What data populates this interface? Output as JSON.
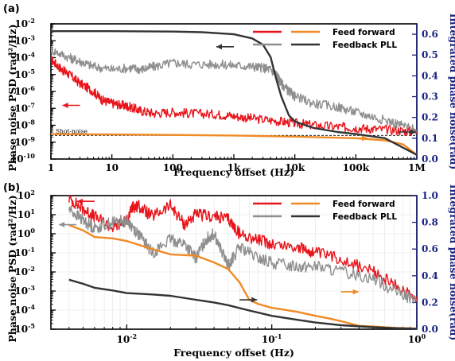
{
  "panels": [
    {
      "label": "(a)"
    },
    {
      "label": "(b)"
    }
  ],
  "chart_data": [
    {
      "type": "line",
      "panel": "(a)",
      "xlabel": "Frequency offset (Hz)",
      "ylabel": "Phase noise PSD (rad²/Hz)",
      "y2label": "Integrated phase noise(rad)",
      "xscale": "log",
      "yscale": "log",
      "y2scale": "linear",
      "xlim": [
        1,
        1000000
      ],
      "ylim": [
        1e-10,
        0.01
      ],
      "y2lim": [
        0,
        0.65
      ],
      "x_ticks": [
        {
          "v": 1,
          "label": "1"
        },
        {
          "v": 10,
          "label": "10"
        },
        {
          "v": 100,
          "label": "100"
        },
        {
          "v": 1000,
          "label": "1k"
        },
        {
          "v": 10000,
          "label": "10k"
        },
        {
          "v": 100000,
          "label": "100k"
        },
        {
          "v": 1000000,
          "label": "1M"
        }
      ],
      "y_ticks": [
        {
          "v": 1e-10,
          "base": "10",
          "exp": "-10"
        },
        {
          "v": 1e-09,
          "base": "10",
          "exp": "-9"
        },
        {
          "v": 1e-08,
          "base": "10",
          "exp": "-8"
        },
        {
          "v": 1e-07,
          "base": "10",
          "exp": "-7"
        },
        {
          "v": 1e-06,
          "base": "10",
          "exp": "-6"
        },
        {
          "v": 1e-05,
          "base": "10",
          "exp": "-5"
        },
        {
          "v": 0.0001,
          "base": "10",
          "exp": "-4"
        },
        {
          "v": 0.001,
          "base": "10",
          "exp": "-3"
        },
        {
          "v": 0.01,
          "base": "10",
          "exp": "-2"
        }
      ],
      "y2_ticks": [
        {
          "v": 0.0,
          "label": "0.0"
        },
        {
          "v": 0.1,
          "label": "0.1"
        },
        {
          "v": 0.2,
          "label": "0.2"
        },
        {
          "v": 0.3,
          "label": "0.3"
        },
        {
          "v": 0.4,
          "label": "0.4"
        },
        {
          "v": 0.5,
          "label": "0.5"
        },
        {
          "v": 0.6,
          "label": "0.6"
        }
      ],
      "grid": false,
      "legend": {
        "placement": "top-right"
      },
      "shot_noise": {
        "label": "Shot-noise",
        "y": 2.5e-09
      },
      "series": [
        {
          "name": "Feed forward",
          "kind": "psd",
          "color": "#e8141b",
          "axis": "left",
          "x": [
            1,
            1.5,
            2,
            3,
            5,
            7,
            10,
            15,
            20,
            30,
            50,
            100,
            200,
            500,
            1000,
            2000,
            5000,
            10000,
            20000,
            50000,
            100000,
            200000,
            500000,
            1000000
          ],
          "y": [
            8e-05,
            2e-05,
            1e-05,
            3e-06,
            1e-06,
            3e-07,
            2e-07,
            1.5e-07,
            1.2e-07,
            7e-08,
            5e-08,
            6e-08,
            5e-08,
            4.5e-08,
            3.5e-08,
            2.5e-08,
            1.8e-08,
            1.3e-08,
            1e-08,
            8e-09,
            7e-09,
            6e-09,
            5e-09,
            4e-09
          ]
        },
        {
          "name": "Feedback PLL",
          "kind": "psd",
          "color": "#8f8f8f",
          "axis": "left",
          "x": [
            1,
            2,
            3,
            5,
            10,
            20,
            30,
            50,
            100,
            200,
            500,
            1000,
            2000,
            3000,
            4000,
            5000,
            6000,
            8000,
            10000,
            20000,
            50000,
            100000,
            200000,
            500000,
            1000000
          ],
          "y": [
            0.0003,
            0.0001,
            6e-05,
            3e-05,
            2e-05,
            2.5e-05,
            2e-05,
            3e-05,
            5e-05,
            4e-05,
            4e-05,
            3.5e-05,
            3e-05,
            2.5e-05,
            2e-05,
            1e-05,
            3e-06,
            1e-06,
            5e-07,
            2e-07,
            1.2e-07,
            6e-08,
            3e-08,
            1.2e-08,
            5e-09
          ]
        },
        {
          "name": "Feed forward",
          "kind": "integrated",
          "color": "#f08a24",
          "axis": "right",
          "x": [
            1,
            10,
            100,
            1000,
            10000,
            100000,
            300000,
            600000,
            1000000
          ],
          "y": [
            0.12,
            0.118,
            0.116,
            0.113,
            0.108,
            0.1,
            0.09,
            0.07,
            0.02
          ]
        },
        {
          "name": "Feedback PLL",
          "kind": "integrated",
          "color": "#333333",
          "axis": "right",
          "x": [
            1,
            10,
            100,
            300,
            1000,
            2000,
            3000,
            4000,
            5000,
            6000,
            8000,
            10000,
            20000,
            50000,
            100000,
            300000,
            1000000
          ],
          "y": [
            0.615,
            0.615,
            0.613,
            0.61,
            0.6,
            0.58,
            0.55,
            0.49,
            0.38,
            0.3,
            0.21,
            0.18,
            0.15,
            0.13,
            0.12,
            0.1,
            0.02
          ]
        }
      ],
      "arrows": [
        {
          "series": "Feedback PLL",
          "axis": "right",
          "x": 1000,
          "y": 0.54,
          "dir": "left"
        },
        {
          "series": "Feed forward",
          "axis": "left",
          "x": 3,
          "y": 1.5e-07,
          "dir": "left"
        },
        {
          "series": "Feed forward",
          "axis": "right",
          "x": 80000,
          "y": 0.1,
          "dir": "right"
        },
        {
          "series": "Feedback PLL",
          "axis": "right",
          "x": 500000,
          "y": 0.13,
          "dir": "right"
        }
      ]
    },
    {
      "type": "line",
      "panel": "(b)",
      "xlabel": "Frequency offset (Hz)",
      "ylabel": "Phase noise PSD (rad²/Hz)",
      "y2label": "Integrated phase noise(rad)",
      "xscale": "log",
      "yscale": "log",
      "y2scale": "linear",
      "xlim": [
        0.003,
        1
      ],
      "ylim": [
        1e-05,
        100
      ],
      "y2lim": [
        0,
        1
      ],
      "x_ticks": [
        {
          "v": 0.01,
          "base": "10",
          "exp": "-2"
        },
        {
          "v": 0.1,
          "base": "10",
          "exp": "-1"
        },
        {
          "v": 1,
          "base": "10",
          "exp": "0"
        }
      ],
      "y_ticks": [
        {
          "v": 1e-05,
          "base": "10",
          "exp": "-5"
        },
        {
          "v": 0.0001,
          "base": "10",
          "exp": "-4"
        },
        {
          "v": 0.001,
          "base": "10",
          "exp": "-3"
        },
        {
          "v": 0.01,
          "base": "10",
          "exp": "-2"
        },
        {
          "v": 0.1,
          "base": "10",
          "exp": "-1"
        },
        {
          "v": 1,
          "base": "10",
          "exp": "0"
        },
        {
          "v": 10,
          "base": "10",
          "exp": "1"
        },
        {
          "v": 100,
          "base": "10",
          "exp": "2"
        }
      ],
      "y2_ticks": [
        {
          "v": 0.0,
          "label": "0.0"
        },
        {
          "v": 0.2,
          "label": "0.2"
        },
        {
          "v": 0.4,
          "label": "0.4"
        },
        {
          "v": 0.6,
          "label": "0.6"
        },
        {
          "v": 0.8,
          "label": "0.8"
        },
        {
          "v": 1.0,
          "label": "1.0"
        }
      ],
      "grid": true,
      "legend": {
        "placement": "top-right"
      },
      "series": [
        {
          "name": "Feed forward",
          "kind": "psd",
          "color": "#e8141b",
          "axis": "left",
          "x": [
            0.004,
            0.005,
            0.006,
            0.008,
            0.01,
            0.011,
            0.012,
            0.015,
            0.02,
            0.025,
            0.03,
            0.04,
            0.05,
            0.06,
            0.08,
            0.1,
            0.15,
            0.2,
            0.3,
            0.5,
            0.7,
            1
          ],
          "y": [
            70,
            20,
            8,
            2,
            5,
            25,
            30,
            8,
            30,
            3,
            10,
            8,
            6,
            1,
            0.5,
            0.3,
            0.2,
            0.1,
            0.05,
            0.01,
            0.002,
            0.0005
          ]
        },
        {
          "name": "Feedback PLL",
          "kind": "psd",
          "color": "#8f8f8f",
          "axis": "left",
          "x": [
            0.004,
            0.005,
            0.006,
            0.008,
            0.01,
            0.012,
            0.015,
            0.02,
            0.025,
            0.03,
            0.035,
            0.04,
            0.05,
            0.06,
            0.08,
            0.1,
            0.15,
            0.2,
            0.3,
            0.5,
            0.7,
            1
          ],
          "y": [
            20,
            5,
            2,
            4,
            5,
            1,
            0.1,
            0.5,
            0.3,
            0.05,
            0.5,
            1,
            0.02,
            0.2,
            0.05,
            0.03,
            0.02,
            0.02,
            0.01,
            0.005,
            0.001,
            0.0003
          ]
        },
        {
          "name": "Feed forward",
          "kind": "integrated",
          "color": "#f08a24",
          "axis": "right",
          "x": [
            0.004,
            0.005,
            0.006,
            0.008,
            0.01,
            0.015,
            0.02,
            0.03,
            0.04,
            0.05,
            0.06,
            0.07,
            0.08,
            0.1,
            0.15,
            0.2,
            0.25,
            0.3,
            0.4,
            0.5,
            0.7,
            1
          ],
          "y": [
            0.78,
            0.74,
            0.69,
            0.68,
            0.66,
            0.6,
            0.56,
            0.55,
            0.5,
            0.45,
            0.35,
            0.22,
            0.19,
            0.16,
            0.13,
            0.1,
            0.08,
            0.06,
            0.025,
            0.02,
            0.01,
            0.005
          ]
        },
        {
          "name": "Feedback PLL",
          "kind": "integrated",
          "color": "#333333",
          "axis": "right",
          "x": [
            0.004,
            0.005,
            0.006,
            0.008,
            0.01,
            0.015,
            0.02,
            0.03,
            0.04,
            0.05,
            0.07,
            0.1,
            0.15,
            0.2,
            0.3,
            0.5,
            0.7,
            1
          ],
          "y": [
            0.37,
            0.34,
            0.31,
            0.29,
            0.27,
            0.26,
            0.25,
            0.22,
            0.2,
            0.18,
            0.14,
            0.1,
            0.07,
            0.05,
            0.03,
            0.015,
            0.008,
            0.003
          ]
        }
      ],
      "arrows": [
        {
          "series": "Feed forward",
          "axis": "left",
          "x": 0.006,
          "y": 50,
          "dir": "left"
        },
        {
          "series": "Feedback PLL",
          "axis": "left",
          "x": 0.0045,
          "y": 3,
          "dir": "left"
        },
        {
          "series": "Feedback PLL",
          "axis": "right",
          "x": 0.06,
          "y": 0.22,
          "dir": "right"
        },
        {
          "series": "Feed forward",
          "axis": "right",
          "x": 0.3,
          "y": 0.28,
          "dir": "right"
        }
      ]
    }
  ]
}
